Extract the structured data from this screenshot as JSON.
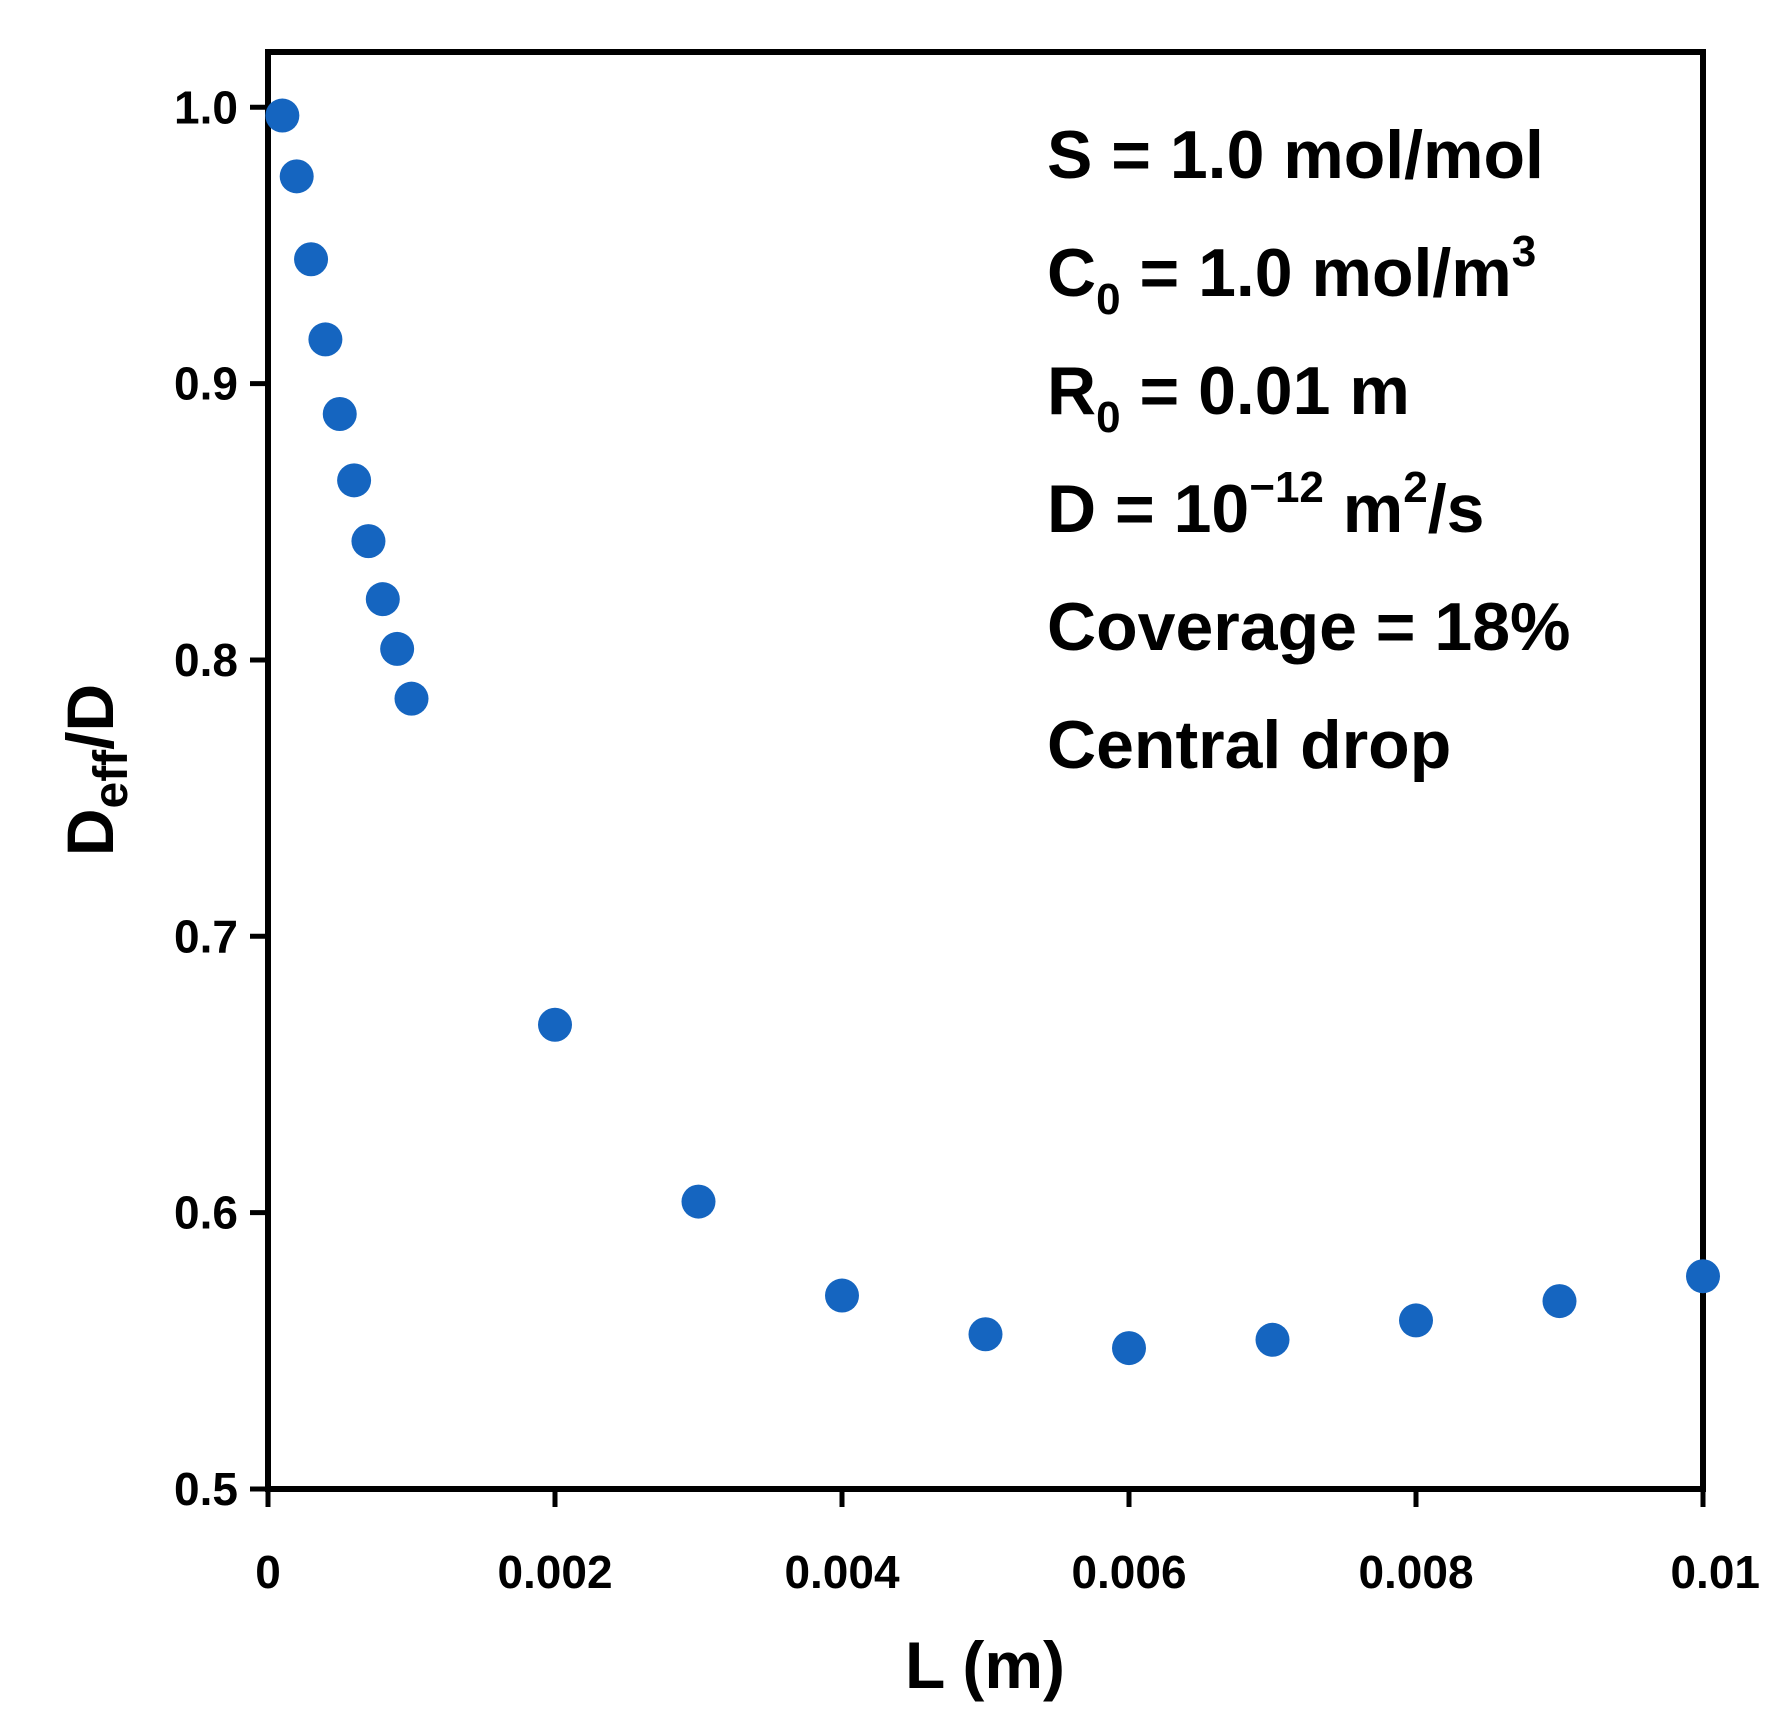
{
  "chart_data": {
    "type": "scatter",
    "title": "",
    "xlabel": "L (m)",
    "ylabel": {
      "main": "D",
      "sub": "eff",
      "rest": "/D"
    },
    "xlim": [
      0,
      0.01
    ],
    "ylim": [
      0.5,
      1.02
    ],
    "grid": false,
    "x_ticks": [
      0,
      0.002,
      0.004,
      0.006,
      0.008,
      0.01
    ],
    "x_tick_labels": [
      "0",
      "0.002",
      "0.004",
      "0.006",
      "0.008",
      "0.01"
    ],
    "y_ticks": [
      0.5,
      0.6,
      0.7,
      0.8,
      0.9,
      1.0
    ],
    "y_tick_labels": [
      "0.5",
      "0.6",
      "0.7",
      "0.8",
      "0.9",
      "1.0"
    ],
    "series": [
      {
        "name": "Central drop",
        "color": "#1565C0",
        "x": [
          0.0001,
          0.0002,
          0.0003,
          0.0004,
          0.0005,
          0.0006,
          0.0007,
          0.0008,
          0.0009,
          0.001,
          0.002,
          0.003,
          0.004,
          0.005,
          0.006,
          0.007,
          0.008,
          0.009,
          0.01
        ],
        "y": [
          0.997,
          0.975,
          0.945,
          0.916,
          0.889,
          0.865,
          0.843,
          0.822,
          0.804,
          0.786,
          0.668,
          0.604,
          0.57,
          0.556,
          0.551,
          0.554,
          0.561,
          0.568,
          0.577
        ]
      }
    ],
    "annotations": [
      {
        "id": "ann-s",
        "parts": [
          {
            "t": "S = 1.0 mol/mol"
          }
        ]
      },
      {
        "id": "ann-c0",
        "parts": [
          {
            "t": "C"
          },
          {
            "t": "0",
            "sub": true
          },
          {
            "t": " = 1.0 mol/m"
          },
          {
            "t": "3",
            "sup": true
          }
        ]
      },
      {
        "id": "ann-r0",
        "parts": [
          {
            "t": "R"
          },
          {
            "t": "0",
            "sub": true
          },
          {
            "t": " = 0.01 m"
          }
        ]
      },
      {
        "id": "ann-d",
        "parts": [
          {
            "t": "D = 10"
          },
          {
            "t": "−12",
            "sup": true
          },
          {
            "t": " m"
          },
          {
            "t": "2",
            "sup": true
          },
          {
            "t": "/s"
          }
        ]
      },
      {
        "id": "ann-coverage",
        "parts": [
          {
            "t": "Coverage = 18%"
          }
        ]
      },
      {
        "id": "ann-central",
        "parts": [
          {
            "t": "Central drop"
          }
        ]
      }
    ]
  }
}
